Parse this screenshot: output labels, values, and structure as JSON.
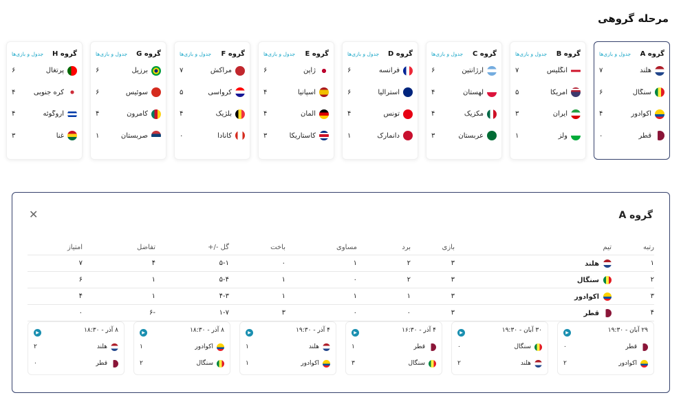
{
  "page_title": "مرحله گروهی",
  "schedule_link": "جدول و بازی‌ها",
  "groups": [
    {
      "name": "گروه A",
      "active": true,
      "teams": [
        {
          "name": "هلند",
          "pts": "۷",
          "flag": "linear-gradient(#ae1c28 33%,#fff 33%,#fff 66%,#21468b 66%)"
        },
        {
          "name": "سنگال",
          "pts": "۶",
          "flag": "linear-gradient(90deg,#00853f 33%,#fdef42 33%,#fdef42 66%,#e31b23 66%)"
        },
        {
          "name": "اکوادور",
          "pts": "۴",
          "flag": "linear-gradient(#ffd100 50%,#034ea2 50%,#034ea2 75%,#ed1c24 75%)"
        },
        {
          "name": "قطر",
          "pts": "۰",
          "flag": "linear-gradient(90deg,#fff 30%,#8a1538 30%)"
        }
      ]
    },
    {
      "name": "گروه B",
      "active": false,
      "teams": [
        {
          "name": "انگلیس",
          "pts": "۷",
          "flag": "linear-gradient(#fff 40%,#cf142b 40%,#cf142b 60%,#fff 60%)"
        },
        {
          "name": "آمریکا",
          "pts": "۵",
          "flag": "linear-gradient(#b22234 15%,#fff 15%,#fff 30%,#b22234 30%,#b22234 45%,#3c3b6e 45%)"
        },
        {
          "name": "ایران",
          "pts": "۳",
          "flag": "linear-gradient(#239f40 33%,#fff 33%,#fff 66%,#da0000 66%)"
        },
        {
          "name": "ولز",
          "pts": "۱",
          "flag": "linear-gradient(#fff 50%,#00ab39 50%)"
        }
      ]
    },
    {
      "name": "گروه C",
      "active": false,
      "teams": [
        {
          "name": "آرژانتین",
          "pts": "۶",
          "flag": "linear-gradient(#74acdf 33%,#fff 33%,#fff 66%,#74acdf 66%)"
        },
        {
          "name": "لهستان",
          "pts": "۴",
          "flag": "linear-gradient(#fff 50%,#dc143c 50%)"
        },
        {
          "name": "مکزیک",
          "pts": "۴",
          "flag": "linear-gradient(90deg,#006847 33%,#fff 33%,#fff 66%,#ce1126 66%)"
        },
        {
          "name": "عربستان",
          "pts": "۳",
          "flag": "#006c35"
        }
      ]
    },
    {
      "name": "گروه D",
      "active": false,
      "teams": [
        {
          "name": "فرانسه",
          "pts": "۶",
          "flag": "linear-gradient(90deg,#002395 33%,#fff 33%,#fff 66%,#ed2939 66%)"
        },
        {
          "name": "استرالیا",
          "pts": "۶",
          "flag": "#00247d"
        },
        {
          "name": "تونس",
          "pts": "۴",
          "flag": "#e70013"
        },
        {
          "name": "دانمارک",
          "pts": "۱",
          "flag": "#c8102e"
        }
      ]
    },
    {
      "name": "گروه E",
      "active": false,
      "teams": [
        {
          "name": "ژاپن",
          "pts": "۶",
          "flag": "radial-gradient(circle,#bc002d 30%,#fff 32%)"
        },
        {
          "name": "اسپانیا",
          "pts": "۴",
          "flag": "linear-gradient(#aa151b 25%,#f1bf00 25%,#f1bf00 75%,#aa151b 75%)"
        },
        {
          "name": "آلمان",
          "pts": "۴",
          "flag": "linear-gradient(#000 33%,#dd0000 33%,#dd0000 66%,#ffce00 66%)"
        },
        {
          "name": "کاستاریکا",
          "pts": "۳",
          "flag": "linear-gradient(#002b7f 20%,#fff 20%,#fff 35%,#ce1126 35%,#ce1126 65%,#fff 65%,#fff 80%,#002b7f 80%)"
        }
      ]
    },
    {
      "name": "گروه F",
      "active": false,
      "teams": [
        {
          "name": "مراکش",
          "pts": "۷",
          "flag": "#c1272d"
        },
        {
          "name": "کرواسی",
          "pts": "۵",
          "flag": "linear-gradient(#ff0000 33%,#fff 33%,#fff 66%,#171796 66%)"
        },
        {
          "name": "بلژیک",
          "pts": "۴",
          "flag": "linear-gradient(90deg,#000 33%,#fdda24 33%,#fdda24 66%,#ef3340 66%)"
        },
        {
          "name": "کانادا",
          "pts": "۰",
          "flag": "linear-gradient(90deg,#d52b1e 25%,#fff 25%,#fff 75%,#d52b1e 75%)"
        }
      ]
    },
    {
      "name": "گروه G",
      "active": false,
      "teams": [
        {
          "name": "برزیل",
          "pts": "۶",
          "flag": "radial-gradient(circle,#002776 25%,#ffdf00 27%,#ffdf00 45%,#009c3b 47%)"
        },
        {
          "name": "سوئیس",
          "pts": "۶",
          "flag": "#d52b1e"
        },
        {
          "name": "کامرون",
          "pts": "۴",
          "flag": "linear-gradient(90deg,#007a5e 33%,#ce1126 33%,#ce1126 66%,#fcd116 66%)"
        },
        {
          "name": "صربستان",
          "pts": "۱",
          "flag": "linear-gradient(#c6363c 33%,#0c4076 33%,#0c4076 66%,#fff 66%)"
        }
      ]
    },
    {
      "name": "گروه H",
      "active": false,
      "teams": [
        {
          "name": "پرتغال",
          "pts": "۶",
          "flag": "linear-gradient(90deg,#006600 40%,#ff0000 40%)"
        },
        {
          "name": "کره جنوبی",
          "pts": "۴",
          "flag": "radial-gradient(circle,#cd2e3a 25%,#fff 27%)"
        },
        {
          "name": "اروگوئه",
          "pts": "۴",
          "flag": "linear-gradient(#fff 20%,#0038a8 20%,#0038a8 40%,#fff 40%,#fff 60%,#0038a8 60%,#0038a8 80%,#fff 80%)"
        },
        {
          "name": "غنا",
          "pts": "۳",
          "flag": "linear-gradient(#ce1126 33%,#fcd116 33%,#fcd116 66%,#006b3f 66%)"
        }
      ]
    }
  ],
  "detail": {
    "title": "گروه A",
    "headers": {
      "rank": "رتبه",
      "team": "تیم",
      "played": "بازی",
      "win": "برد",
      "draw": "مساوی",
      "loss": "باخت",
      "goals": "گل -/+",
      "diff": "تفاضل",
      "pts": "امتیاز"
    },
    "rows": [
      {
        "rank": "۱",
        "team": "هلند",
        "flag": "linear-gradient(#ae1c28 33%,#fff 33%,#fff 66%,#21468b 66%)",
        "played": "۳",
        "win": "۲",
        "draw": "۱",
        "loss": "۰",
        "goals": "۵-۱",
        "diff": "۴",
        "pts": "۷"
      },
      {
        "rank": "۲",
        "team": "سنگال",
        "flag": "linear-gradient(90deg,#00853f 33%,#fdef42 33%,#fdef42 66%,#e31b23 66%)",
        "played": "۳",
        "win": "۲",
        "draw": "۰",
        "loss": "۱",
        "goals": "۵-۴",
        "diff": "۱",
        "pts": "۶"
      },
      {
        "rank": "۳",
        "team": "اکوادور",
        "flag": "linear-gradient(#ffd100 50%,#034ea2 50%,#034ea2 75%,#ed1c24 75%)",
        "played": "۳",
        "win": "۱",
        "draw": "۱",
        "loss": "۱",
        "goals": "۴-۳",
        "diff": "۱",
        "pts": "۴"
      },
      {
        "rank": "۴",
        "team": "قطر",
        "flag": "linear-gradient(90deg,#fff 30%,#8a1538 30%)",
        "played": "۳",
        "win": "۰",
        "draw": "۰",
        "loss": "۳",
        "goals": "۱-۷",
        "diff": "-۶",
        "pts": "۰"
      }
    ],
    "matches": [
      {
        "date": "۲۹ آبان - ۱۹:۳۰",
        "t1": "قطر",
        "f1": "linear-gradient(90deg,#fff 30%,#8a1538 30%)",
        "s1": "۰",
        "t2": "اکوادور",
        "f2": "linear-gradient(#ffd100 50%,#034ea2 50%,#034ea2 75%,#ed1c24 75%)",
        "s2": "۲"
      },
      {
        "date": "۳۰ آبان - ۱۹:۳۰",
        "t1": "سنگال",
        "f1": "linear-gradient(90deg,#00853f 33%,#fdef42 33%,#fdef42 66%,#e31b23 66%)",
        "s1": "۰",
        "t2": "هلند",
        "f2": "linear-gradient(#ae1c28 33%,#fff 33%,#fff 66%,#21468b 66%)",
        "s2": "۲"
      },
      {
        "date": "۴ آذر - ۱۶:۳۰",
        "t1": "قطر",
        "f1": "linear-gradient(90deg,#fff 30%,#8a1538 30%)",
        "s1": "۱",
        "t2": "سنگال",
        "f2": "linear-gradient(90deg,#00853f 33%,#fdef42 33%,#fdef42 66%,#e31b23 66%)",
        "s2": "۳"
      },
      {
        "date": "۴ آذر - ۱۹:۳۰",
        "t1": "هلند",
        "f1": "linear-gradient(#ae1c28 33%,#fff 33%,#fff 66%,#21468b 66%)",
        "s1": "۱",
        "t2": "اکوادور",
        "f2": "linear-gradient(#ffd100 50%,#034ea2 50%,#034ea2 75%,#ed1c24 75%)",
        "s2": "۱"
      },
      {
        "date": "۸ آذر - ۱۸:۳۰",
        "t1": "اکوادور",
        "f1": "linear-gradient(#ffd100 50%,#034ea2 50%,#034ea2 75%,#ed1c24 75%)",
        "s1": "۱",
        "t2": "سنگال",
        "f2": "linear-gradient(90deg,#00853f 33%,#fdef42 33%,#fdef42 66%,#e31b23 66%)",
        "s2": "۲"
      },
      {
        "date": "۸ آذر - ۱۸:۳۰",
        "t1": "هلند",
        "f1": "linear-gradient(#ae1c28 33%,#fff 33%,#fff 66%,#21468b 66%)",
        "s1": "۲",
        "t2": "قطر",
        "f2": "linear-gradient(90deg,#fff 30%,#8a1538 30%)",
        "s2": "۰"
      }
    ]
  },
  "close_icon": "close-icon",
  "play_icon": "play-icon",
  "accent": "#1aa7c8",
  "active_border": "#34406b"
}
